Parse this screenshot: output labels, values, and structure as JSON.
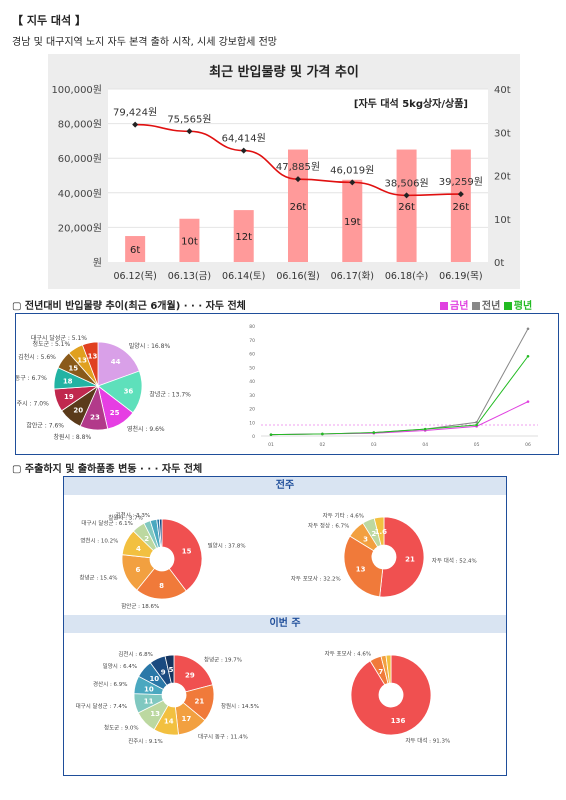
{
  "header": {
    "title": "【 지두 대석 】",
    "subtitle": "경남 및 대구지역 노지 자두 본격 출하 시작, 시세 강보합세 전망"
  },
  "section2": {
    "title": "▢  전년대비 반입물량 추이(최근 6개월) · · · 자두 전체",
    "legend": [
      {
        "label": "금년",
        "color": "#e040e0"
      },
      {
        "label": "전년",
        "color": "#888888"
      },
      {
        "label": "평년",
        "color": "#22bb22"
      }
    ]
  },
  "section3": {
    "title": "▢  주출하지 및 출하품종 변동 · · · 자두 전체",
    "prev_label": "전주",
    "this_label": "이번 주"
  },
  "chart_data": [
    {
      "type": "bar+line",
      "title": "최근 반입물량 및 가격 추이",
      "annotation": "[자두 대석 5kg상자/상품]",
      "categories": [
        "06.12(목)",
        "06.13(금)",
        "06.14(토)",
        "06.16(월)",
        "06.17(화)",
        "06.18(수)",
        "06.19(목)"
      ],
      "bar_series": {
        "unit": "t",
        "values": [
          6,
          10,
          12,
          26,
          19,
          26,
          26
        ],
        "color": "#ff9a9a"
      },
      "line_series": {
        "unit": "원",
        "values": [
          79424,
          75565,
          64414,
          47885,
          46019,
          38506,
          39259
        ],
        "labels": [
          "79,424원",
          "75,565원",
          "64,414원",
          "47,885원",
          "46,019원",
          "38,506원",
          "39,259원"
        ],
        "color": "#e01010"
      },
      "y_left": {
        "ticks": [
          "100,000원",
          "80,000원",
          "60,000원",
          "40,000원",
          "20,000원",
          "원"
        ],
        "ylim": [
          0,
          100000
        ]
      },
      "y_right": {
        "ticks": [
          "40t",
          "30t",
          "20t",
          "10t",
          "0t"
        ],
        "ylim": [
          0,
          40
        ]
      }
    },
    {
      "type": "pie",
      "slices": [
        {
          "label": "밀양시 : 16.8%",
          "value": 44,
          "color": "#d9a0e8"
        },
        {
          "label": "창녕군 : 13.7%",
          "value": 36,
          "color": "#5ee0bb"
        },
        {
          "label": "영천시 : 9.6%",
          "value": 25,
          "color": "#e63ee3"
        },
        {
          "label": "창원시 : 8.8%",
          "value": 23,
          "color": "#b23a8a"
        },
        {
          "label": "함안군 : 7.6%",
          "value": 20,
          "color": "#5a3a1a"
        },
        {
          "label": "진주시 : 7.0%",
          "value": 19,
          "color": "#c0284e"
        },
        {
          "label": "대구시 동구 : 6.7%",
          "value": 18,
          "color": "#22b3a3"
        },
        {
          "label": "김천시 : 5.6%",
          "value": 15,
          "color": "#8a5a1a"
        },
        {
          "label": "청도군 : 5.1%",
          "value": 13,
          "color": "#e0a020"
        },
        {
          "label": "대구시 달성군 : 5.1%",
          "value": 13,
          "color": "#e04020"
        }
      ]
    },
    {
      "type": "line",
      "y_ticks": [
        "80",
        "70",
        "60",
        "50",
        "40",
        "30",
        "20",
        "10",
        "0"
      ],
      "x_ticks": [
        "01",
        "02",
        "03",
        "04",
        "05",
        "06"
      ],
      "series": [
        {
          "name": "금년",
          "color": "#e040e0",
          "values": [
            1,
            1.5,
            2,
            4,
            7,
            25
          ]
        },
        {
          "name": "전년",
          "color": "#888888",
          "values": [
            1,
            1.5,
            2.5,
            5,
            10,
            78
          ]
        },
        {
          "name": "평년",
          "color": "#22bb22",
          "values": [
            1,
            1.5,
            2.5,
            5,
            8,
            58
          ]
        }
      ]
    },
    {
      "type": "donut",
      "group": "전주",
      "slices": [
        {
          "label": "밀양시 : 37.8%",
          "value": 15,
          "color": "#f05050"
        },
        {
          "label": "함안군 : 18.6%",
          "value": 8,
          "color": "#f07a3a"
        },
        {
          "label": "창녕군 : 15.4%",
          "value": 6,
          "color": "#f2a040"
        },
        {
          "label": "영천시 : 10.2%",
          "value": 4,
          "color": "#f2c040"
        },
        {
          "label": "대구시 달성군 : 6.1%",
          "value": 2,
          "color": "#bcd8a0"
        },
        {
          "label": "창원시 : 3.7%",
          "value": 1,
          "color": "#80c8c0"
        },
        {
          "label": "김천시 : 3.3%",
          "value": 1,
          "color": "#4aa8c0"
        },
        {
          "label": "",
          "value": 0.4,
          "color": "#2a78a8"
        },
        {
          "label": "",
          "value": 0.4,
          "color": "#1a4a80"
        }
      ]
    },
    {
      "type": "donut",
      "group": "전주",
      "slices": [
        {
          "label": "자두 대석 : 52.4%",
          "value": 21,
          "color": "#f05050"
        },
        {
          "label": "자두 포모사 : 32.2%",
          "value": 13,
          "color": "#f07a3a"
        },
        {
          "label": "자두 정상 : 6.7%",
          "value": 3,
          "color": "#f2a040"
        },
        {
          "label": "자두 기타 : 4.6%",
          "value": 2,
          "color": "#bcd8a0"
        },
        {
          "label": "",
          "value": 1.6,
          "color": "#f2c040"
        }
      ]
    },
    {
      "type": "donut",
      "group": "이번 주",
      "slices": [
        {
          "label": "창녕군 : 19.7%",
          "value": 29,
          "color": "#f05050"
        },
        {
          "label": "창원시 : 14.5%",
          "value": 21,
          "color": "#f07a3a"
        },
        {
          "label": "대구시 동구 : 11.4%",
          "value": 17,
          "color": "#f2a040"
        },
        {
          "label": "진주시 : 9.1%",
          "value": 14,
          "color": "#f2c040"
        },
        {
          "label": "청도군 : 9.0%",
          "value": 13,
          "color": "#bcd8a0"
        },
        {
          "label": "대구시 달성군 : 7.4%",
          "value": 11,
          "color": "#80c8c0"
        },
        {
          "label": "경산시 : 6.9%",
          "value": 10,
          "color": "#4aa8c0"
        },
        {
          "label": "밀양시 : 6.4%",
          "value": 10,
          "color": "#2a78a8"
        },
        {
          "label": "김천시 : 6.8%",
          "value": 9,
          "color": "#1a4a80"
        },
        {
          "label": "",
          "value": 5,
          "color": "#153560"
        }
      ]
    },
    {
      "type": "donut",
      "group": "이번 주",
      "slices": [
        {
          "label": "자두 대석 : 91.3%",
          "value": 136,
          "color": "#f05050"
        },
        {
          "label": "자두 포모사 : 4.6%",
          "value": 7,
          "color": "#f07a3a"
        },
        {
          "label": "",
          "value": 3,
          "color": "#f2a040"
        },
        {
          "label": "",
          "value": 3,
          "color": "#f2c040"
        }
      ]
    }
  ]
}
